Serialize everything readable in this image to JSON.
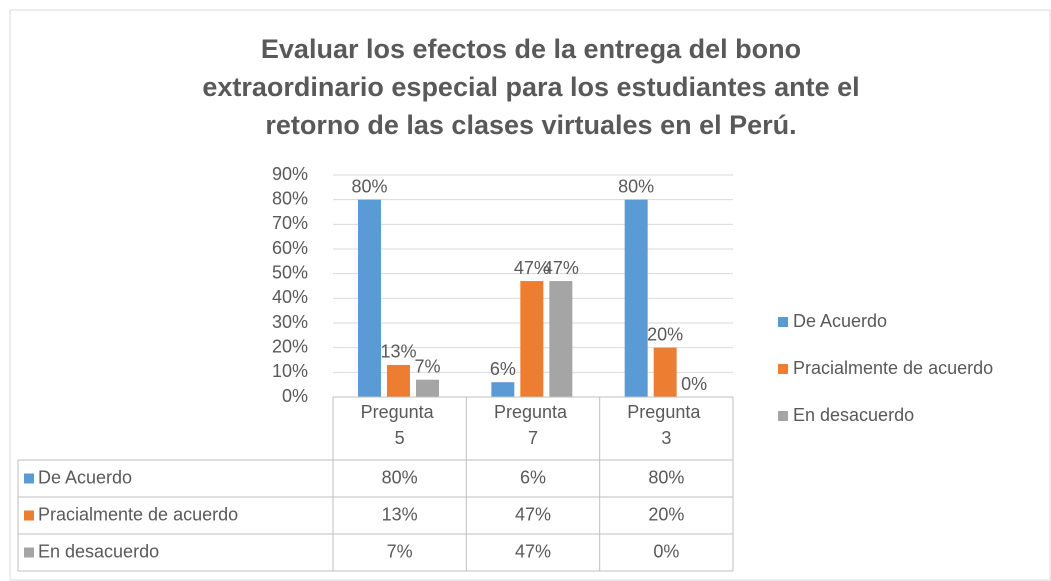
{
  "chart_data": {
    "type": "bar",
    "title": [
      "Evaluar los efectos de la entrega del bono",
      "extraordinario especial para los estudiantes ante el",
      "retorno de las clases virtuales en el Perú."
    ],
    "categories": [
      "Pregunta 5",
      "Pregunta 7",
      "Pregunta 3"
    ],
    "series": [
      {
        "name": "De Acuerdo",
        "color": "#5b9bd5",
        "values": [
          80,
          6,
          80
        ],
        "value_labels": [
          "80%",
          "6%",
          "80%"
        ]
      },
      {
        "name": "Pracialmente de acuerdo",
        "color": "#ed7d31",
        "values": [
          13,
          47,
          20
        ],
        "value_labels": [
          "13%",
          "47%",
          "20%"
        ]
      },
      {
        "name": "En desacuerdo",
        "color": "#a5a5a5",
        "values": [
          7,
          47,
          0
        ],
        "value_labels": [
          "7%",
          "47%",
          "0%"
        ]
      }
    ],
    "ylim": [
      0,
      90
    ],
    "yticks": [
      {
        "value": 0,
        "label": "0%"
      },
      {
        "value": 10,
        "label": "10%"
      },
      {
        "value": 20,
        "label": "20%"
      },
      {
        "value": 30,
        "label": "30%"
      },
      {
        "value": 40,
        "label": "40%"
      },
      {
        "value": 50,
        "label": "50%"
      },
      {
        "value": 60,
        "label": "60%"
      },
      {
        "value": 70,
        "label": "70%"
      },
      {
        "value": 80,
        "label": "80%"
      },
      {
        "value": 90,
        "label": "90%"
      }
    ],
    "grid": true,
    "legend": "right",
    "data_table": true
  }
}
